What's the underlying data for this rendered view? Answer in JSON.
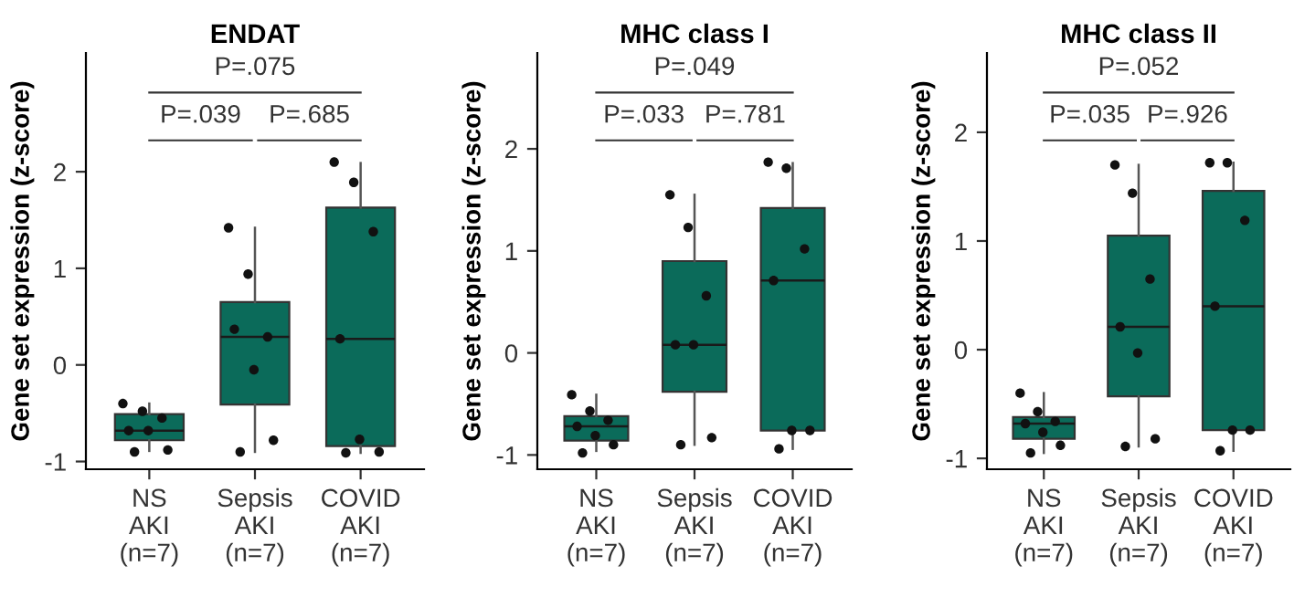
{
  "chart_data": [
    {
      "type": "box",
      "title": "ENDAT",
      "ylabel": "Gene set expression (z-score)",
      "categories": [
        "NS\nAKI\n(n=7)",
        "Sepsis\nAKI\n(n=7)",
        "COVID\nAKI\n(n=7)"
      ],
      "ylim": [
        -1.08,
        3.23
      ],
      "yticks": [
        -1,
        0,
        1,
        2
      ],
      "grid": false,
      "annotations": [
        "P=.075",
        "P=.039",
        "P=.685"
      ],
      "series": [
        {
          "type": "box",
          "color": "#0b6b5a",
          "boxes": [
            {
              "low": -0.89,
              "q1": -0.78,
              "median": -0.68,
              "q3": -0.51,
              "high": -0.4
            },
            {
              "low": -0.9,
              "q1": -0.41,
              "median": 0.29,
              "q3": 0.65,
              "high": 1.42
            },
            {
              "low": -0.91,
              "q1": -0.84,
              "median": 0.27,
              "q3": 1.63,
              "high": 2.09
            }
          ]
        },
        {
          "type": "scatter",
          "color": "#111111",
          "x": [
            "NS\nAKI\n(n=7)",
            "NS\nAKI\n(n=7)",
            "NS\nAKI\n(n=7)",
            "NS\nAKI\n(n=7)",
            "NS\nAKI\n(n=7)",
            "NS\nAKI\n(n=7)",
            "NS\nAKI\n(n=7)",
            "Sepsis\nAKI\n(n=7)",
            "Sepsis\nAKI\n(n=7)",
            "Sepsis\nAKI\n(n=7)",
            "Sepsis\nAKI\n(n=7)",
            "Sepsis\nAKI\n(n=7)",
            "Sepsis\nAKI\n(n=7)",
            "Sepsis\nAKI\n(n=7)",
            "COVID\nAKI\n(n=7)",
            "COVID\nAKI\n(n=7)",
            "COVID\nAKI\n(n=7)",
            "COVID\nAKI\n(n=7)",
            "COVID\nAKI\n(n=7)",
            "COVID\nAKI\n(n=7)",
            "COVID\nAKI\n(n=7)"
          ],
          "values": [
            -0.4,
            -0.48,
            -0.55,
            -0.68,
            -0.68,
            -0.88,
            -0.9,
            1.42,
            0.94,
            0.29,
            0.37,
            -0.05,
            -0.78,
            -0.9,
            2.1,
            1.89,
            1.38,
            0.27,
            -0.77,
            -0.9,
            -0.91
          ]
        }
      ]
    },
    {
      "type": "box",
      "title": "MHC class I",
      "ylabel": "Gene set expression (z-score)",
      "categories": [
        "NS\nAKI\n(n=7)",
        "Sepsis\nAKI\n(n=7)",
        "COVID\nAKI\n(n=7)"
      ],
      "ylim": [
        -1.14,
        2.94
      ],
      "yticks": [
        -1,
        0,
        1,
        2
      ],
      "grid": false,
      "annotations": [
        "P=.049",
        "P=.033",
        "P=.781"
      ],
      "series": [
        {
          "type": "box",
          "color": "#0b6b5a",
          "boxes": [
            {
              "low": -0.96,
              "q1": -0.86,
              "median": -0.72,
              "q3": -0.62,
              "high": -0.41
            },
            {
              "low": -0.9,
              "q1": -0.38,
              "median": 0.08,
              "q3": 0.9,
              "high": 1.55
            },
            {
              "low": -0.94,
              "q1": -0.76,
              "median": 0.71,
              "q3": 1.42,
              "high": 1.86
            }
          ]
        },
        {
          "type": "scatter",
          "color": "#111111",
          "x": [
            "NS\nAKI\n(n=7)",
            "NS\nAKI\n(n=7)",
            "NS\nAKI\n(n=7)",
            "NS\nAKI\n(n=7)",
            "NS\nAKI\n(n=7)",
            "NS\nAKI\n(n=7)",
            "NS\nAKI\n(n=7)",
            "Sepsis\nAKI\n(n=7)",
            "Sepsis\nAKI\n(n=7)",
            "Sepsis\nAKI\n(n=7)",
            "Sepsis\nAKI\n(n=7)",
            "Sepsis\nAKI\n(n=7)",
            "Sepsis\nAKI\n(n=7)",
            "Sepsis\nAKI\n(n=7)",
            "COVID\nAKI\n(n=7)",
            "COVID\nAKI\n(n=7)",
            "COVID\nAKI\n(n=7)",
            "COVID\nAKI\n(n=7)",
            "COVID\nAKI\n(n=7)",
            "COVID\nAKI\n(n=7)",
            "COVID\nAKI\n(n=7)"
          ],
          "values": [
            -0.41,
            -0.57,
            -0.66,
            -0.72,
            -0.81,
            -0.9,
            -0.98,
            1.55,
            1.23,
            0.56,
            0.08,
            0.08,
            -0.83,
            -0.9,
            1.87,
            1.81,
            1.02,
            0.71,
            -0.76,
            -0.76,
            -0.94
          ]
        }
      ]
    },
    {
      "type": "box",
      "title": "MHC class II",
      "ylabel": "Gene set expression (z-score)",
      "categories": [
        "NS\nAKI\n(n=7)",
        "Sepsis\nAKI\n(n=7)",
        "COVID\nAKI\n(n=7)"
      ],
      "ylim": [
        -1.1,
        2.73
      ],
      "yticks": [
        -1,
        0,
        1,
        2
      ],
      "grid": false,
      "annotations": [
        "P=.052",
        "P=.035",
        "P=.926"
      ],
      "series": [
        {
          "type": "box",
          "color": "#0b6b5a",
          "boxes": [
            {
              "low": -0.95,
              "q1": -0.82,
              "median": -0.68,
              "q3": -0.62,
              "high": -0.4
            },
            {
              "low": -0.89,
              "q1": -0.43,
              "median": 0.21,
              "q3": 1.05,
              "high": 1.7
            },
            {
              "low": -0.93,
              "q1": -0.74,
              "median": 0.4,
              "q3": 1.46,
              "high": 1.72
            }
          ]
        },
        {
          "type": "scatter",
          "color": "#111111",
          "x": [
            "NS\nAKI\n(n=7)",
            "NS\nAKI\n(n=7)",
            "NS\nAKI\n(n=7)",
            "NS\nAKI\n(n=7)",
            "NS\nAKI\n(n=7)",
            "NS\nAKI\n(n=7)",
            "NS\nAKI\n(n=7)",
            "Sepsis\nAKI\n(n=7)",
            "Sepsis\nAKI\n(n=7)",
            "Sepsis\nAKI\n(n=7)",
            "Sepsis\nAKI\n(n=7)",
            "Sepsis\nAKI\n(n=7)",
            "Sepsis\nAKI\n(n=7)",
            "Sepsis\nAKI\n(n=7)",
            "COVID\nAKI\n(n=7)",
            "COVID\nAKI\n(n=7)",
            "COVID\nAKI\n(n=7)",
            "COVID\nAKI\n(n=7)",
            "COVID\nAKI\n(n=7)",
            "COVID\nAKI\n(n=7)",
            "COVID\nAKI\n(n=7)"
          ],
          "values": [
            -0.4,
            -0.57,
            -0.66,
            -0.68,
            -0.76,
            -0.88,
            -0.95,
            1.7,
            1.44,
            0.65,
            0.21,
            -0.03,
            -0.82,
            -0.89,
            1.72,
            1.72,
            1.19,
            0.4,
            -0.74,
            -0.74,
            -0.93
          ]
        }
      ]
    }
  ]
}
